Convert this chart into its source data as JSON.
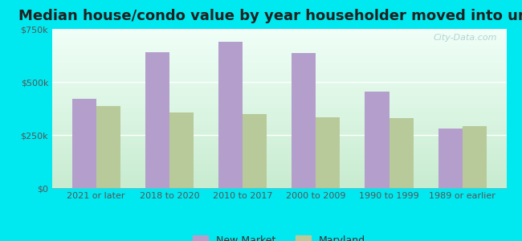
{
  "title": "Median house/condo value by year householder moved into unit",
  "categories": [
    "2021 or later",
    "2018 to 2020",
    "2010 to 2017",
    "2000 to 2009",
    "1990 to 1999",
    "1989 or earlier"
  ],
  "new_market": [
    420000,
    640000,
    690000,
    635000,
    455000,
    280000
  ],
  "maryland": [
    385000,
    355000,
    350000,
    335000,
    330000,
    290000
  ],
  "new_market_color": "#b49fcc",
  "maryland_color": "#b8c99a",
  "outer_background": "#00e8f0",
  "plot_bg_top": "#f0fff8",
  "plot_bg_bottom": "#c8ecd0",
  "ylim": [
    0,
    750000
  ],
  "yticks": [
    0,
    250000,
    500000,
    750000
  ],
  "ytick_labels": [
    "$0",
    "$250k",
    "$500k",
    "$750k"
  ],
  "watermark": "City-Data.com",
  "legend_new_market": "New Market",
  "legend_maryland": "Maryland",
  "title_fontsize": 13,
  "tick_fontsize": 8,
  "legend_fontsize": 9
}
